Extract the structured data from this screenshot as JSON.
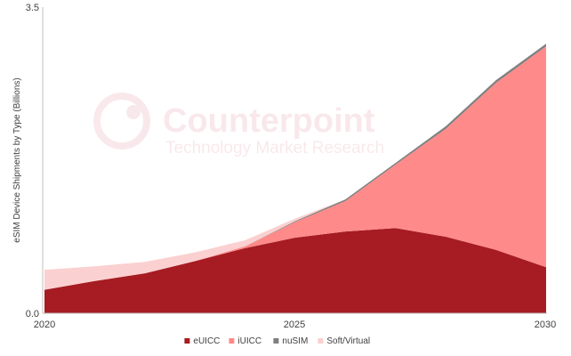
{
  "watermark": {
    "brand": "Counterpoint",
    "tagline": "Technology Market Research"
  },
  "chart_data": {
    "type": "area",
    "stacked": true,
    "title": "",
    "xlabel": "",
    "ylabel": "eSIM Device Shipments by Type (Billions)",
    "xlim": [
      2020,
      2030
    ],
    "ylim": [
      0,
      3.5
    ],
    "x_ticks": [
      "2020",
      "2025",
      "2030"
    ],
    "y_ticks": [
      "0.0",
      "3.5"
    ],
    "legend_position": "bottom",
    "x": [
      2020,
      2021,
      2022,
      2023,
      2024,
      2025,
      2026,
      2027,
      2028,
      2029,
      2030
    ],
    "series": [
      {
        "name": "eUICC",
        "color": "#A61C22",
        "values": [
          0.27,
          0.37,
          0.46,
          0.6,
          0.75,
          0.87,
          0.94,
          0.98,
          0.88,
          0.73,
          0.53
        ]
      },
      {
        "name": "iUICC",
        "color": "#FF8A8A",
        "values": [
          0.0,
          0.0,
          0.0,
          0.0,
          0.02,
          0.18,
          0.35,
          0.73,
          1.24,
          1.92,
          2.54
        ]
      },
      {
        "name": "nuSIM",
        "color": "#7F7F7F",
        "values": [
          0.0,
          0.0,
          0.0,
          0.0,
          0.0,
          0.01,
          0.02,
          0.02,
          0.03,
          0.03,
          0.03
        ]
      },
      {
        "name": "Soft/Virtual",
        "color": "#FBD0D0",
        "values": [
          0.23,
          0.17,
          0.13,
          0.1,
          0.07,
          0.03,
          0.0,
          0.0,
          0.0,
          0.0,
          0.0
        ]
      }
    ]
  }
}
